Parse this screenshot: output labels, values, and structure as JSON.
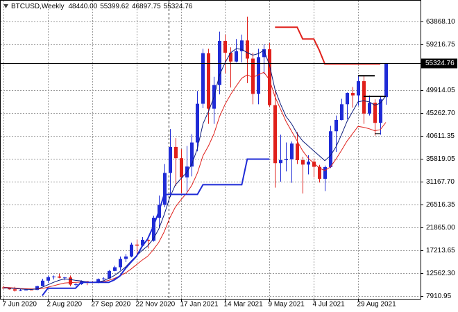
{
  "chart_data": {
    "type": "candlestick",
    "symbol": "BTCUSD,Weekly",
    "ohlc_text": [
      "48440.00",
      "55399.62",
      "46897.75",
      "55324.76"
    ],
    "categories": [
      "7 Jun 2020",
      null,
      null,
      null,
      null,
      null,
      null,
      null,
      "2 Aug 2020",
      null,
      null,
      null,
      null,
      null,
      null,
      null,
      "27 Sep 2020",
      null,
      null,
      null,
      null,
      null,
      null,
      null,
      "22 Nov 2020",
      null,
      null,
      null,
      null,
      null,
      null,
      null,
      "17 Jan 2021",
      null,
      null,
      null,
      null,
      null,
      null,
      null,
      "14 Mar 2021",
      null,
      null,
      null,
      null,
      null,
      null,
      null,
      "9 May 2021",
      null,
      null,
      null,
      null,
      null,
      null,
      null,
      "4 Jul 2021",
      null,
      null,
      null,
      null,
      null,
      null,
      null,
      "29 Aug 2021",
      null,
      null,
      null,
      null,
      null
    ],
    "open": [
      9670,
      9470,
      9290,
      9010,
      9070,
      9230,
      9160,
      9930,
      11050,
      11770,
      11900,
      11650,
      11700,
      10250,
      10320,
      10930,
      10770,
      10670,
      11380,
      11500,
      13030,
      13780,
      15480,
      15970,
      18400,
      18190,
      19370,
      19170,
      23870,
      26500,
      33000,
      38300,
      36000,
      32100,
      34300,
      39200,
      47100,
      57400,
      46100,
      50900,
      59900,
      57500,
      55700,
      57800,
      60000,
      56300,
      49100,
      56600,
      58200,
      46800,
      35000,
      35600,
      35800,
      39000,
      35600,
      34700,
      35300,
      34250,
      31800,
      34200,
      41500,
      43800,
      47000,
      49300,
      48800,
      51700,
      45100,
      47300,
      43200,
      48440
    ],
    "high": [
      9990,
      9590,
      9800,
      9320,
      9450,
      9340,
      10010,
      11440,
      12060,
      12090,
      12470,
      11800,
      12090,
      10580,
      11100,
      10990,
      10950,
      11490,
      11720,
      13220,
      14100,
      15970,
      16480,
      18800,
      19400,
      19920,
      19420,
      24300,
      28400,
      34800,
      41950,
      40100,
      37850,
      38500,
      40900,
      49700,
      58300,
      58300,
      52600,
      61800,
      61200,
      58600,
      60300,
      61200,
      64850,
      57500,
      58300,
      59200,
      59500,
      49700,
      40800,
      39200,
      39400,
      41300,
      36300,
      36600,
      35950,
      34650,
      34500,
      42600,
      44700,
      48100,
      49400,
      50500,
      52900,
      52900,
      48800,
      48000,
      48500,
      55399.62
    ],
    "low": [
      9400,
      9240,
      8830,
      8940,
      9070,
      9110,
      9120,
      9900,
      10600,
      11280,
      11530,
      11130,
      9900,
      9880,
      10210,
      10140,
      10530,
      10530,
      11220,
      11400,
      12960,
      13220,
      14840,
      15800,
      16300,
      18150,
      17600,
      19000,
      21800,
      26000,
      28100,
      30400,
      28850,
      29200,
      32300,
      37400,
      46200,
      43000,
      43000,
      49000,
      53300,
      50400,
      55500,
      55500,
      51300,
      47000,
      47000,
      53100,
      46500,
      30000,
      31200,
      33300,
      31000,
      34800,
      28800,
      32700,
      32100,
      31050,
      29300,
      34000,
      37300,
      43700,
      43900,
      46300,
      46700,
      43000,
      44700,
      40600,
      40800,
      46897.75
    ],
    "close": [
      9470,
      9290,
      9010,
      9070,
      9230,
      9160,
      9930,
      11050,
      11770,
      11900,
      11650,
      11700,
      10250,
      10320,
      10930,
      10770,
      10670,
      11380,
      11500,
      13030,
      13780,
      15480,
      15970,
      18400,
      18190,
      19370,
      19170,
      23870,
      26500,
      33000,
      38300,
      36000,
      32100,
      34300,
      39200,
      47100,
      57400,
      46100,
      50900,
      59900,
      57500,
      55700,
      57800,
      60000,
      56300,
      49100,
      56600,
      58200,
      46800,
      35000,
      35600,
      35800,
      39000,
      35600,
      34700,
      35300,
      34250,
      31800,
      34200,
      41500,
      43800,
      47000,
      49300,
      48800,
      51700,
      45100,
      47300,
      43200,
      48000,
      55324.76
    ],
    "up_color": "#1f2bd6",
    "down_color": "#e0201b",
    "series": [
      {
        "color": "#e0201b",
        "line_width": 1,
        "values": [
          9700,
          9650,
          9550,
          9450,
          9400,
          9350,
          9350,
          9450,
          9700,
          10000,
          10300,
          10550,
          10650,
          10700,
          10750,
          10750,
          10700,
          10750,
          10850,
          11100,
          11500,
          12000,
          12600,
          13400,
          14300,
          15200,
          16000,
          17300,
          18800,
          21000,
          23800,
          26000,
          27500,
          28800,
          30500,
          33000,
          36500,
          38500,
          41000,
          44500,
          47000,
          49000,
          50700,
          52300,
          53000,
          52500,
          53000,
          53500,
          52000,
          48500,
          46000,
          43500,
          41500,
          39500,
          37500,
          36000,
          35000,
          34000,
          33500,
          34200,
          35800,
          37600,
          39500,
          41000,
          42500,
          42300,
          42000,
          41600,
          41800,
          43300
        ]
      },
      {
        "color": "#0a1a7a",
        "line_width": 1,
        "values": [
          9600,
          9550,
          9450,
          9350,
          9300,
          9250,
          9350,
          9700,
          10200,
          10700,
          11100,
          11400,
          11300,
          11100,
          11000,
          10800,
          10700,
          10800,
          11000,
          11500,
          12100,
          12900,
          13800,
          15000,
          16100,
          17200,
          18100,
          19500,
          21500,
          24500,
          28000,
          30500,
          31800,
          33000,
          34800,
          38000,
          43000,
          45500,
          48500,
          53000,
          55500,
          57500,
          58300,
          58200,
          57500,
          57000,
          57300,
          58000,
          55000,
          50000,
          47000,
          44500,
          43000,
          41000,
          39500,
          38500,
          37500,
          36500,
          35500,
          36500,
          38300,
          40800,
          43500,
          45500,
          47500,
          47700,
          47500,
          46800,
          47200,
          48700
        ]
      },
      {
        "color": "#1f2bd6",
        "line_width": 2,
        "values": [
          null,
          null,
          null,
          null,
          null,
          null,
          null,
          8000,
          9500,
          9500,
          9500,
          9500,
          9500,
          9500,
          10700,
          10700,
          10700,
          10700,
          10700,
          10700,
          11200,
          12000,
          13500,
          14800,
          16000,
          18000,
          19500,
          22000,
          25000,
          28600,
          28630,
          28630,
          28630,
          28630,
          28630,
          28630,
          30600,
          30600,
          30600,
          30600,
          30600,
          30600,
          30600,
          30600,
          35820,
          35820,
          35820,
          35820,
          35820,
          null,
          null,
          null,
          null,
          null,
          null,
          null,
          null,
          null,
          null,
          null,
          null,
          null,
          null,
          null,
          null,
          null,
          null,
          null,
          null,
          null
        ]
      },
      {
        "color": "#e0201b",
        "line_width": 2,
        "values": [
          null,
          null,
          null,
          null,
          null,
          null,
          null,
          null,
          null,
          null,
          null,
          null,
          null,
          null,
          null,
          null,
          null,
          null,
          null,
          null,
          null,
          null,
          null,
          null,
          null,
          null,
          null,
          null,
          null,
          null,
          null,
          null,
          null,
          null,
          null,
          null,
          null,
          null,
          null,
          null,
          null,
          null,
          null,
          null,
          null,
          null,
          null,
          null,
          null,
          62700,
          62700,
          62700,
          62700,
          62700,
          60300,
          60300,
          60300,
          58000,
          55200,
          55200,
          55200,
          55200,
          55200,
          55200,
          55200,
          55200,
          55200,
          55200,
          55200,
          null
        ]
      },
      {
        "color": "#000000",
        "line_width": 2,
        "values": [
          null,
          null,
          null,
          null,
          null,
          null,
          null,
          null,
          null,
          null,
          null,
          null,
          null,
          null,
          null,
          null,
          null,
          null,
          null,
          null,
          null,
          null,
          null,
          null,
          null,
          null,
          null,
          null,
          null,
          null,
          null,
          null,
          null,
          null,
          null,
          null,
          null,
          null,
          null,
          null,
          null,
          null,
          null,
          null,
          null,
          null,
          null,
          null,
          null,
          null,
          null,
          null,
          null,
          null,
          null,
          null,
          null,
          null,
          null,
          null,
          null,
          null,
          null,
          null,
          52800,
          52800,
          52800,
          52800,
          null,
          null
        ]
      },
      {
        "color": "#000000",
        "line_width": 2,
        "values": [
          null,
          null,
          null,
          null,
          null,
          null,
          null,
          null,
          null,
          null,
          null,
          null,
          null,
          null,
          null,
          null,
          null,
          null,
          null,
          null,
          null,
          null,
          null,
          null,
          null,
          null,
          null,
          null,
          null,
          null,
          null,
          null,
          null,
          null,
          null,
          null,
          null,
          null,
          null,
          null,
          null,
          null,
          null,
          null,
          null,
          null,
          null,
          null,
          null,
          null,
          null,
          null,
          null,
          null,
          null,
          null,
          null,
          null,
          null,
          null,
          null,
          null,
          null,
          null,
          null,
          48600,
          48600,
          48600,
          48600,
          48600
        ]
      },
      {
        "color": "#000000",
        "line_width": 1,
        "values": [
          null,
          null,
          null,
          null,
          null,
          null,
          null,
          null,
          null,
          null,
          null,
          null,
          null,
          null,
          null,
          null,
          null,
          null,
          null,
          null,
          null,
          null,
          null,
          null,
          null,
          null,
          null,
          null,
          null,
          null,
          null,
          null,
          null,
          null,
          null,
          null,
          null,
          null,
          null,
          null,
          null,
          null,
          null,
          null,
          null,
          null,
          null,
          null,
          null,
          null,
          null,
          null,
          null,
          null,
          null,
          null,
          null,
          null,
          null,
          null,
          null,
          null,
          null,
          null,
          null,
          null,
          null,
          41000,
          41000,
          null
        ]
      }
    ],
    "price_line": {
      "value": 55324.76,
      "label": "55324.76"
    },
    "ylim": [
      7347,
      68097
    ],
    "yticks": [
      {
        "value": 63868.1,
        "label": "63868.10"
      },
      {
        "value": 59216.75,
        "label": "59216.75"
      },
      {
        "value": 49914.05,
        "label": "49914.05"
      },
      {
        "value": 45262.7,
        "label": "45262.70"
      },
      {
        "value": 40611.35,
        "label": "40611.35"
      },
      {
        "value": 35819.05,
        "label": "35819.05"
      },
      {
        "value": 31167.7,
        "label": "31167.70"
      },
      {
        "value": 26516.35,
        "label": "26516.35"
      },
      {
        "value": 21865,
        "label": "21865.00"
      },
      {
        "value": 17213.65,
        "label": "17213.65"
      },
      {
        "value": 12562.3,
        "label": "12562.30"
      },
      {
        "value": 7910.95,
        "label": "7910.95"
      }
    ],
    "grid": true
  }
}
